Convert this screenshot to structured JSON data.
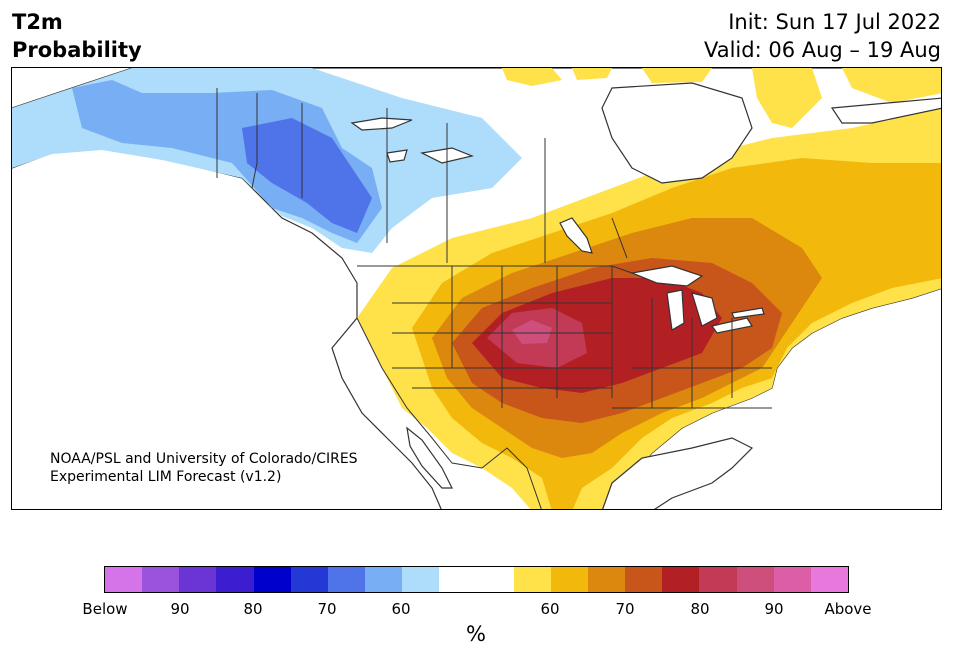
{
  "title": {
    "variable": "T2m",
    "metric": "Probability",
    "init": "Init: Sun 17 Jul 2022",
    "valid": "Valid: 06 Aug – 19 Aug"
  },
  "credit": {
    "line1": "NOAA/PSL and University of Colorado/CIRES",
    "line2": "Experimental LIM Forecast (v1.2)"
  },
  "colorbar": {
    "unit": "%",
    "ticks": [
      "Below",
      "90",
      "80",
      "70",
      "60",
      "60",
      "70",
      "80",
      "90",
      "Above"
    ],
    "colors": [
      "#d474e8",
      "#9b52dc",
      "#6b35d6",
      "#3c1ed0",
      "#0000cc",
      "#2438d6",
      "#4f73e8",
      "#78aef4",
      "#aedcfb",
      "#ffffff",
      "#ffe14a",
      "#f2b90c",
      "#dc870e",
      "#c8561a",
      "#b32024",
      "#c23a55",
      "#cf4f7c",
      "#db5ea6",
      "#e878dc"
    ]
  },
  "map_colors": {
    "ocean": "#ffffff",
    "land_neutral": "#ffffff",
    "cold_60": "#aedcfb",
    "cold_70": "#78aef4",
    "cold_80": "#4f73e8",
    "warm_60": "#ffe14a",
    "warm_65": "#f2b90c",
    "warm_70": "#dc870e",
    "warm_75": "#c8561a",
    "warm_80": "#b32024",
    "warm_85": "#c23a55",
    "warm_90": "#cf4f7c",
    "lakes": "#ffffff",
    "borders": "#333333"
  }
}
